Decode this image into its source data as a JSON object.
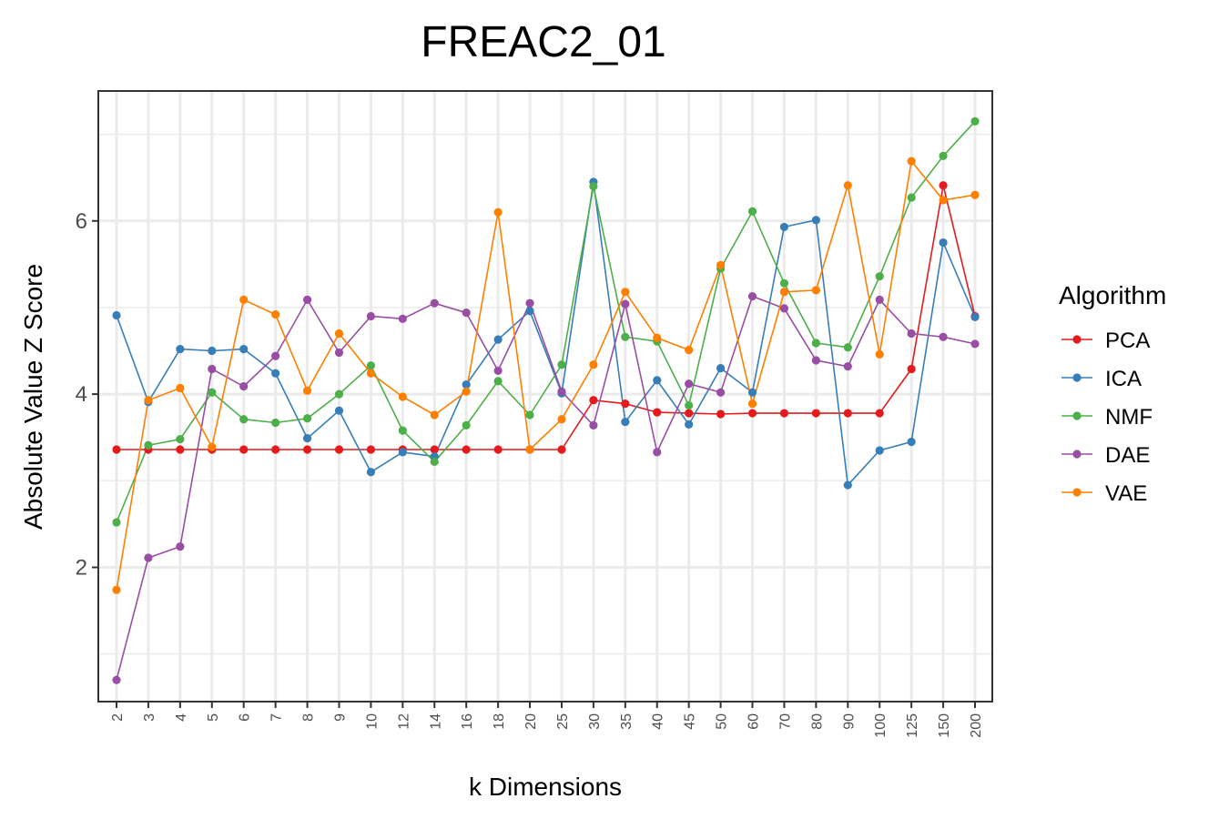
{
  "chart_data": {
    "type": "line",
    "title": "FREAC2_01",
    "xlabel": "k Dimensions",
    "ylabel": "Absolute Value Z Score",
    "categories": [
      "2",
      "3",
      "4",
      "5",
      "6",
      "7",
      "8",
      "9",
      "10",
      "12",
      "14",
      "16",
      "18",
      "20",
      "25",
      "30",
      "35",
      "40",
      "45",
      "50",
      "60",
      "70",
      "80",
      "90",
      "100",
      "125",
      "150",
      "200"
    ],
    "yticks": [
      2,
      4,
      6
    ],
    "ylim": [
      0.45,
      7.5
    ],
    "grid": true,
    "legend": {
      "title": "Algorithm",
      "position": "right"
    },
    "series": [
      {
        "name": "PCA",
        "color": "#e41a1c",
        "values": [
          3.36,
          3.36,
          3.36,
          3.36,
          3.36,
          3.36,
          3.36,
          3.36,
          3.36,
          3.36,
          3.36,
          3.36,
          3.36,
          3.36,
          3.36,
          3.93,
          3.89,
          3.79,
          3.78,
          3.77,
          3.78,
          3.78,
          3.78,
          3.78,
          3.78,
          4.29,
          6.41,
          4.9
        ]
      },
      {
        "name": "ICA",
        "color": "#377eb8",
        "values": [
          4.91,
          3.91,
          4.52,
          4.5,
          4.52,
          4.24,
          3.49,
          3.81,
          3.1,
          3.33,
          3.28,
          4.11,
          4.63,
          4.96,
          4.01,
          6.45,
          3.68,
          4.16,
          3.65,
          4.3,
          4.02,
          5.93,
          6.01,
          2.95,
          3.35,
          3.45,
          5.75,
          4.89
        ]
      },
      {
        "name": "NMF",
        "color": "#4daf4a",
        "values": [
          2.52,
          3.41,
          3.48,
          4.02,
          3.71,
          3.67,
          3.72,
          4.0,
          4.33,
          3.58,
          3.22,
          3.64,
          4.15,
          3.76,
          4.34,
          6.4,
          4.66,
          4.61,
          3.87,
          5.45,
          6.11,
          5.28,
          4.59,
          4.54,
          5.36,
          6.27,
          6.75,
          7.15
        ]
      },
      {
        "name": "DAE",
        "color": "#984ea3",
        "values": [
          0.7,
          2.11,
          2.24,
          4.29,
          4.09,
          4.44,
          5.09,
          4.48,
          4.9,
          4.87,
          5.05,
          4.94,
          4.27,
          5.05,
          4.03,
          3.64,
          5.04,
          3.33,
          4.12,
          4.02,
          5.13,
          4.99,
          4.39,
          4.32,
          5.09,
          4.7,
          4.66,
          4.58
        ]
      },
      {
        "name": "VAE",
        "color": "#ff7f00",
        "values": [
          1.74,
          3.93,
          4.07,
          3.39,
          5.09,
          4.92,
          4.04,
          4.7,
          4.24,
          3.97,
          3.76,
          4.03,
          6.1,
          3.36,
          3.71,
          4.34,
          5.18,
          4.65,
          4.51,
          5.49,
          3.89,
          5.18,
          5.2,
          6.41,
          4.46,
          6.69,
          6.24,
          6.3
        ]
      }
    ]
  }
}
